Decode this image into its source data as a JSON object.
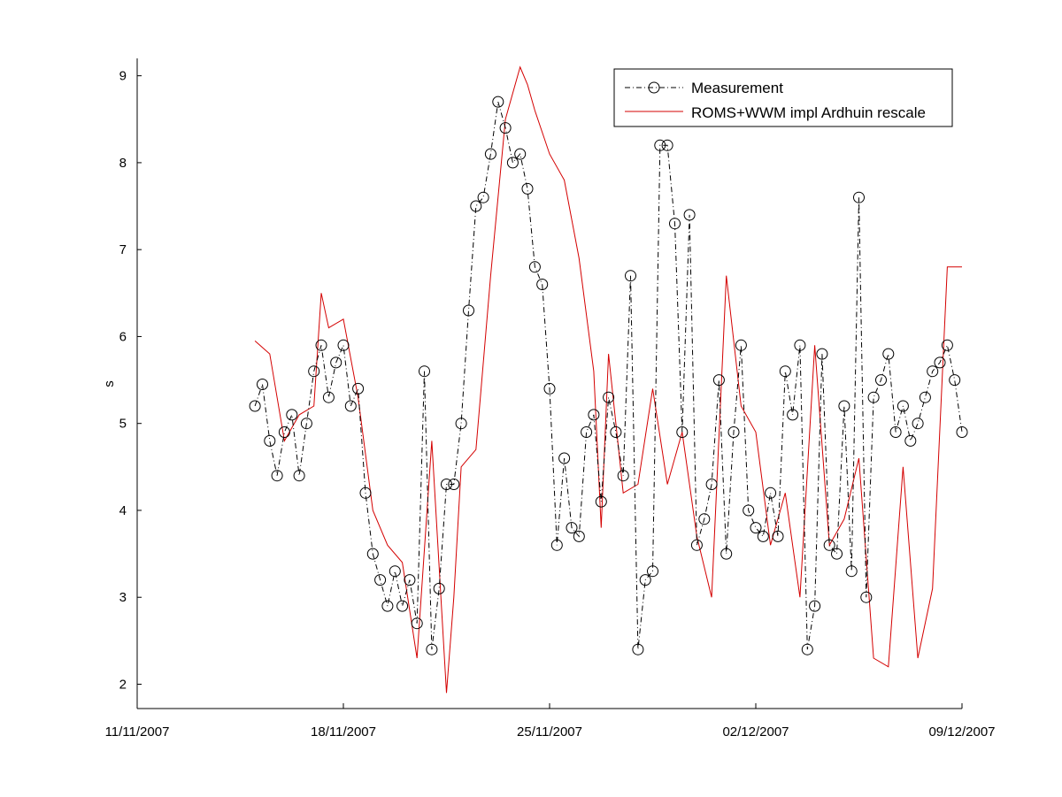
{
  "chart_data": {
    "type": "line",
    "title": "",
    "xlabel": "",
    "ylabel": "s",
    "xlim": [
      "2007-11-11",
      "2007-12-09"
    ],
    "ylim": [
      1.72,
      9.2
    ],
    "grid": false,
    "legend_position": "top-right",
    "x_ticks": [
      "11/11/2007",
      "18/11/2007",
      "25/11/2007",
      "02/12/2007",
      "09/12/2007"
    ],
    "y_ticks": [
      "2",
      "3",
      "4",
      "5",
      "6",
      "7",
      "8",
      "9"
    ],
    "series": [
      {
        "name": "Measurement",
        "color": "#000000",
        "style": "dash-dot line with open circle markers",
        "x": [
          "2007-11-15T00:00",
          "2007-11-15T06:00",
          "2007-11-15T12:00",
          "2007-11-15T18:00",
          "2007-11-16T00:00",
          "2007-11-16T06:00",
          "2007-11-16T12:00",
          "2007-11-16T18:00",
          "2007-11-17T00:00",
          "2007-11-17T06:00",
          "2007-11-17T12:00",
          "2007-11-17T18:00",
          "2007-11-18T00:00",
          "2007-11-18T06:00",
          "2007-11-18T12:00",
          "2007-11-18T18:00",
          "2007-11-19T00:00",
          "2007-11-19T06:00",
          "2007-11-19T12:00",
          "2007-11-19T18:00",
          "2007-11-20T00:00",
          "2007-11-20T06:00",
          "2007-11-20T12:00",
          "2007-11-20T18:00",
          "2007-11-21T00:00",
          "2007-11-21T06:00",
          "2007-11-21T12:00",
          "2007-11-21T18:00",
          "2007-11-22T00:00",
          "2007-11-22T06:00",
          "2007-11-22T12:00",
          "2007-11-22T18:00",
          "2007-11-23T00:00",
          "2007-11-23T06:00",
          "2007-11-23T12:00",
          "2007-11-23T18:00",
          "2007-11-24T00:00",
          "2007-11-24T06:00",
          "2007-11-24T12:00",
          "2007-11-24T18:00",
          "2007-11-25T00:00",
          "2007-11-25T06:00",
          "2007-11-25T12:00",
          "2007-11-25T18:00",
          "2007-11-26T00:00",
          "2007-11-26T06:00",
          "2007-11-26T12:00",
          "2007-11-26T18:00",
          "2007-11-27T00:00",
          "2007-11-27T06:00",
          "2007-11-27T12:00",
          "2007-11-27T18:00",
          "2007-11-28T00:00",
          "2007-11-28T06:00",
          "2007-11-28T12:00",
          "2007-11-28T18:00",
          "2007-11-29T00:00",
          "2007-11-29T06:00",
          "2007-11-29T12:00",
          "2007-11-29T18:00",
          "2007-11-30T00:00",
          "2007-11-30T06:00",
          "2007-11-30T12:00",
          "2007-11-30T18:00",
          "2007-12-01T00:00",
          "2007-12-01T06:00",
          "2007-12-01T12:00",
          "2007-12-01T18:00",
          "2007-12-02T00:00",
          "2007-12-02T06:00",
          "2007-12-02T12:00",
          "2007-12-02T18:00",
          "2007-12-03T00:00",
          "2007-12-03T06:00",
          "2007-12-03T12:00",
          "2007-12-03T18:00",
          "2007-12-04T00:00",
          "2007-12-04T06:00",
          "2007-12-04T12:00",
          "2007-12-04T18:00",
          "2007-12-05T00:00",
          "2007-12-05T06:00",
          "2007-12-05T12:00",
          "2007-12-05T18:00",
          "2007-12-06T00:00",
          "2007-12-06T06:00",
          "2007-12-06T12:00",
          "2007-12-06T18:00",
          "2007-12-07T00:00",
          "2007-12-07T06:00",
          "2007-12-07T12:00",
          "2007-12-07T18:00",
          "2007-12-08T00:00",
          "2007-12-08T06:00",
          "2007-12-08T12:00",
          "2007-12-08T18:00",
          "2007-12-09T00:00"
        ],
        "values": [
          5.2,
          5.45,
          4.8,
          4.4,
          4.9,
          5.1,
          4.4,
          5.0,
          5.6,
          5.9,
          5.3,
          5.7,
          5.9,
          5.2,
          5.4,
          4.2,
          3.5,
          3.2,
          2.9,
          3.3,
          2.9,
          3.2,
          2.7,
          5.6,
          2.4,
          3.1,
          4.3,
          4.3,
          5.0,
          6.3,
          7.5,
          7.6,
          8.1,
          8.7,
          8.4,
          8.0,
          8.1,
          7.7,
          6.8,
          6.6,
          5.4,
          3.6,
          4.6,
          3.8,
          3.7,
          4.9,
          5.1,
          4.1,
          5.3,
          4.9,
          4.4,
          6.7,
          2.4,
          3.2,
          3.3,
          8.2,
          8.2,
          7.3,
          4.9,
          7.4,
          3.6,
          3.9,
          4.3,
          5.5,
          3.5,
          4.9,
          5.9,
          4.0,
          3.8,
          3.7,
          4.2,
          3.7,
          5.6,
          5.1,
          5.9,
          2.4,
          2.9,
          5.8,
          3.6,
          3.5,
          5.2,
          3.3,
          7.6,
          3.0,
          5.3,
          5.5,
          5.8,
          4.9,
          5.2,
          4.8,
          5.0,
          5.3,
          5.6,
          5.7,
          5.9,
          5.5,
          4.9
        ]
      },
      {
        "name": "ROMS+WWM impl Ardhuin rescale",
        "color": "#d40000",
        "style": "solid line",
        "x": [
          "2007-11-15T00:00",
          "2007-11-15T12:00",
          "2007-11-16T00:00",
          "2007-11-16T12:00",
          "2007-11-17T00:00",
          "2007-11-17T06:00",
          "2007-11-17T12:00",
          "2007-11-18T00:00",
          "2007-11-18T12:00",
          "2007-11-19T00:00",
          "2007-11-19T12:00",
          "2007-11-20T00:00",
          "2007-11-20T12:00",
          "2007-11-21T00:00",
          "2007-11-21T12:00",
          "2007-11-21T18:00",
          "2007-11-22T00:00",
          "2007-11-22T12:00",
          "2007-11-23T00:00",
          "2007-11-23T12:00",
          "2007-11-24T00:00",
          "2007-11-24T06:00",
          "2007-11-24T12:00",
          "2007-11-25T00:00",
          "2007-11-25T12:00",
          "2007-11-26T00:00",
          "2007-11-26T12:00",
          "2007-11-26T18:00",
          "2007-11-27T00:00",
          "2007-11-27T12:00",
          "2007-11-28T00:00",
          "2007-11-28T12:00",
          "2007-11-29T00:00",
          "2007-11-29T12:00",
          "2007-11-30T00:00",
          "2007-11-30T12:00",
          "2007-12-01T00:00",
          "2007-12-01T12:00",
          "2007-12-02T00:00",
          "2007-12-02T12:00",
          "2007-12-03T00:00",
          "2007-12-03T12:00",
          "2007-12-04T00:00",
          "2007-12-04T12:00",
          "2007-12-05T00:00",
          "2007-12-05T12:00",
          "2007-12-06T00:00",
          "2007-12-06T12:00",
          "2007-12-07T00:00",
          "2007-12-07T12:00",
          "2007-12-08T00:00",
          "2007-12-08T12:00",
          "2007-12-09T00:00"
        ],
        "values": [
          5.95,
          5.8,
          4.8,
          5.1,
          5.2,
          6.5,
          6.1,
          6.2,
          5.3,
          4.0,
          3.6,
          3.4,
          2.3,
          4.8,
          1.9,
          3.0,
          4.5,
          4.7,
          6.7,
          8.5,
          9.1,
          8.9,
          8.6,
          8.1,
          7.8,
          6.9,
          5.6,
          3.8,
          5.8,
          4.2,
          4.3,
          5.4,
          4.3,
          4.9,
          3.7,
          3.0,
          6.7,
          5.2,
          4.9,
          3.6,
          4.2,
          3.0,
          5.9,
          3.6,
          3.9,
          4.6,
          2.3,
          2.2,
          4.5,
          2.3,
          3.1,
          6.8,
          6.8
        ]
      }
    ]
  }
}
